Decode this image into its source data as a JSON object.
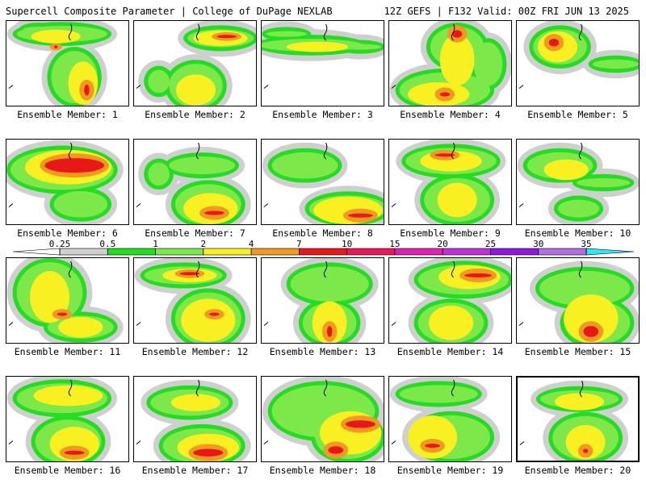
{
  "header": {
    "title_left": "Supercell Composite Parameter | College of DuPage NEXLAB",
    "title_right": "12Z GEFS | F132 Valid: 00Z FRI JUN 13 2025"
  },
  "colors": {
    "white": "#ffffff",
    "gray": "#cfcfcf",
    "bright_green": "#22dd22",
    "light_green": "#7ce84a",
    "yellow": "#f8f020",
    "orange": "#f09a20",
    "red": "#e81818",
    "crimson": "#e8185a",
    "magenta": "#e020b0",
    "violet": "#c030d8",
    "purple": "#9018e0",
    "lavender": "#b070e0",
    "cyan": "#30e8f0"
  },
  "colorbar": {
    "labels": [
      "0.25",
      "0.5",
      "1",
      "2",
      "4",
      "7",
      "10",
      "15",
      "20",
      "25",
      "30",
      "35"
    ],
    "colors": [
      "#cfcfcf",
      "#22dd22",
      "#7ce84a",
      "#f8f020",
      "#f09a20",
      "#e81818",
      "#e8185a",
      "#e020b0",
      "#c030d8",
      "#9018e0",
      "#b070e0",
      "#30e8f0"
    ]
  },
  "members": [
    {
      "label": "Ensemble Member: 1"
    },
    {
      "label": "Ensemble Member: 2"
    },
    {
      "label": "Ensemble Member: 3"
    },
    {
      "label": "Ensemble Member: 4"
    },
    {
      "label": "Ensemble Member: 5"
    },
    {
      "label": "Ensemble Member: 6"
    },
    {
      "label": "Ensemble Member: 7"
    },
    {
      "label": "Ensemble Member: 8"
    },
    {
      "label": "Ensemble Member: 9"
    },
    {
      "label": "Ensemble Member: 10"
    },
    {
      "label": "Ensemble Member: 11"
    },
    {
      "label": "Ensemble Member: 12"
    },
    {
      "label": "Ensemble Member: 13"
    },
    {
      "label": "Ensemble Member: 14"
    },
    {
      "label": "Ensemble Member: 15"
    },
    {
      "label": "Ensemble Member: 16"
    },
    {
      "label": "Ensemble Member: 17"
    },
    {
      "label": "Ensemble Member: 18"
    },
    {
      "label": "Ensemble Member: 19"
    },
    {
      "label": "Ensemble Member: 20",
      "highlighted": true
    }
  ]
}
